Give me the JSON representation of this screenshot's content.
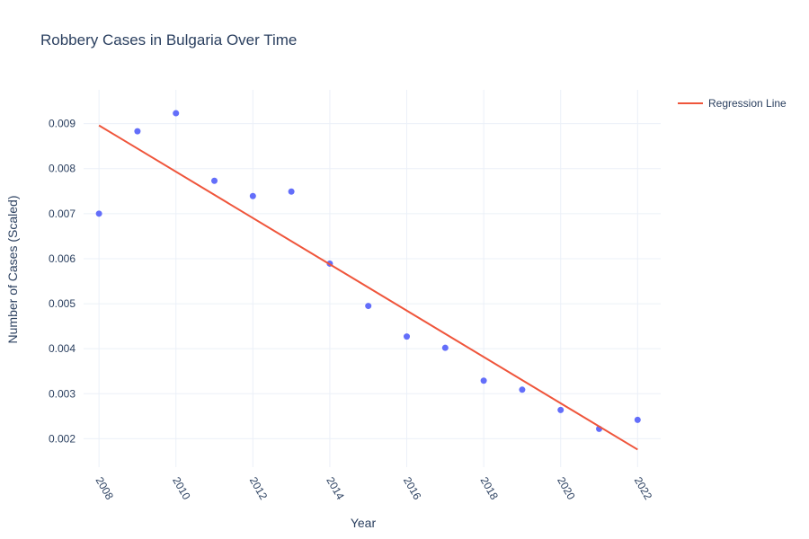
{
  "chart_data": {
    "type": "scatter",
    "title": "Robbery Cases in Bulgaria Over Time",
    "xlabel": "Year",
    "ylabel": "Number of Cases (Scaled)",
    "xlim": [
      2007.6,
      2022.6
    ],
    "ylim": [
      0.00137,
      0.00975
    ],
    "x_ticks": [
      2008,
      2010,
      2012,
      2014,
      2016,
      2018,
      2020,
      2022
    ],
    "y_ticks": [
      0.002,
      0.003,
      0.004,
      0.005,
      0.006,
      0.007,
      0.008,
      0.009
    ],
    "y_tick_labels": [
      "0.002",
      "0.003",
      "0.004",
      "0.005",
      "0.006",
      "0.007",
      "0.008",
      "0.009"
    ],
    "grid": true,
    "legend_position": "top-right",
    "series": [
      {
        "kind": "markers",
        "color": "#636efa",
        "x": [
          2008,
          2009,
          2010,
          2011,
          2012,
          2013,
          2014,
          2015,
          2016,
          2017,
          2018,
          2019,
          2020,
          2021,
          2022
        ],
        "y": [
          0.007,
          0.00883,
          0.00923,
          0.00773,
          0.00739,
          0.00749,
          0.00589,
          0.00495,
          0.00427,
          0.00402,
          0.00329,
          0.00309,
          0.00264,
          0.00222,
          0.00242
        ]
      },
      {
        "kind": "line",
        "name": "Regression Line",
        "color": "#ef553b",
        "x": [
          2008,
          2022
        ],
        "y": [
          0.00896,
          0.00176
        ]
      }
    ]
  }
}
